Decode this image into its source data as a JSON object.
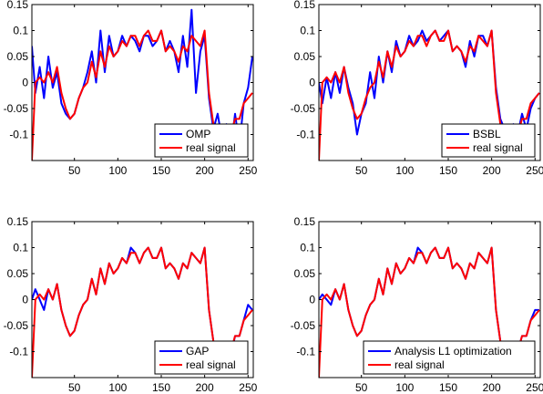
{
  "chart_data": [
    {
      "type": "line",
      "legend": [
        "OMP",
        "real signal"
      ],
      "legend_placement": "bottom-right",
      "xlim": [
        1,
        256
      ],
      "ylim": [
        -0.15,
        0.15
      ],
      "xticks": [
        50,
        100,
        150,
        200,
        250
      ],
      "yticks": [
        -0.1,
        -0.05,
        0,
        0.05,
        0.1,
        0.15
      ],
      "xtick_labels": [
        "50",
        "100",
        "150",
        "200",
        "250"
      ],
      "ytick_labels": [
        "-0.1",
        "-0.05",
        "0",
        "0.05",
        "0.1",
        "0.15"
      ],
      "grid": false,
      "series": [
        {
          "name": "OMP",
          "color": "#0000ff",
          "x": [
            1,
            5,
            10,
            15,
            20,
            25,
            30,
            35,
            40,
            45,
            50,
            55,
            60,
            65,
            70,
            75,
            80,
            85,
            90,
            95,
            100,
            105,
            110,
            115,
            120,
            125,
            130,
            135,
            140,
            145,
            150,
            155,
            160,
            165,
            170,
            175,
            180,
            185,
            190,
            195,
            200,
            205,
            210,
            215,
            220,
            225,
            230,
            235,
            240,
            245,
            250,
            255
          ],
          "y": [
            0.07,
            -0.02,
            0.03,
            -0.03,
            0.05,
            -0.01,
            0.02,
            -0.04,
            -0.06,
            -0.07,
            -0.06,
            -0.03,
            -0.01,
            0.02,
            0.06,
            0.0,
            0.1,
            0.02,
            0.09,
            0.05,
            0.06,
            0.09,
            0.07,
            0.09,
            0.08,
            0.06,
            0.09,
            0.09,
            0.07,
            0.08,
            0.1,
            0.06,
            0.08,
            0.06,
            0.02,
            0.09,
            0.03,
            0.14,
            -0.02,
            0.06,
            0.09,
            -0.03,
            -0.09,
            -0.06,
            -0.11,
            -0.08,
            -0.13,
            -0.06,
            -0.12,
            -0.04,
            -0.01,
            0.05
          ]
        },
        {
          "name": "real signal",
          "color": "#ff0000",
          "x": [
            1,
            5,
            10,
            15,
            20,
            25,
            30,
            35,
            40,
            45,
            50,
            55,
            60,
            65,
            70,
            75,
            80,
            85,
            90,
            95,
            100,
            105,
            110,
            115,
            120,
            125,
            130,
            135,
            140,
            145,
            150,
            155,
            160,
            165,
            170,
            175,
            180,
            185,
            190,
            195,
            200,
            205,
            210,
            215,
            220,
            225,
            230,
            235,
            240,
            245,
            250,
            255
          ],
          "y": [
            -0.15,
            0.0,
            0.01,
            0.0,
            0.02,
            0.0,
            0.03,
            -0.02,
            -0.05,
            -0.07,
            -0.06,
            -0.03,
            -0.01,
            0.0,
            0.04,
            0.01,
            0.06,
            0.03,
            0.07,
            0.05,
            0.06,
            0.08,
            0.07,
            0.09,
            0.09,
            0.07,
            0.09,
            0.1,
            0.08,
            0.08,
            0.1,
            0.06,
            0.07,
            0.06,
            0.04,
            0.07,
            0.06,
            0.09,
            0.08,
            0.07,
            0.1,
            -0.02,
            -0.08,
            -0.1,
            -0.12,
            -0.09,
            -0.1,
            -0.07,
            -0.07,
            -0.04,
            -0.03,
            -0.02
          ]
        }
      ]
    },
    {
      "type": "line",
      "legend": [
        "BSBL",
        "real signal"
      ],
      "legend_placement": "bottom-right",
      "xlim": [
        1,
        256
      ],
      "ylim": [
        -0.15,
        0.15
      ],
      "xticks": [
        50,
        100,
        150,
        200,
        250
      ],
      "yticks": [
        -0.1,
        -0.05,
        0,
        0.05,
        0.1,
        0.15
      ],
      "xtick_labels": [
        "50",
        "100",
        "150",
        "200",
        "250"
      ],
      "ytick_labels": [
        "-0.1",
        "-0.05",
        "0",
        "0.05",
        "0.1",
        "0.15"
      ],
      "grid": false,
      "series": [
        {
          "name": "BSBL",
          "color": "#0000ff",
          "x": [
            1,
            5,
            10,
            15,
            20,
            25,
            30,
            35,
            40,
            45,
            50,
            55,
            60,
            65,
            70,
            75,
            80,
            85,
            90,
            95,
            100,
            105,
            110,
            115,
            120,
            125,
            130,
            135,
            140,
            145,
            150,
            155,
            160,
            165,
            170,
            175,
            180,
            185,
            190,
            195,
            200,
            205,
            210,
            215,
            220,
            225,
            230,
            235,
            240,
            245,
            250,
            255
          ],
          "y": [
            0.0,
            -0.04,
            0.01,
            -0.03,
            0.02,
            -0.02,
            0.03,
            -0.01,
            -0.04,
            -0.1,
            -0.06,
            -0.04,
            0.02,
            -0.03,
            0.05,
            0.0,
            0.06,
            0.02,
            0.08,
            0.05,
            0.06,
            0.09,
            0.07,
            0.08,
            0.1,
            0.08,
            0.09,
            0.1,
            0.08,
            0.09,
            0.1,
            0.06,
            0.07,
            0.06,
            0.03,
            0.08,
            0.05,
            0.09,
            0.09,
            0.07,
            0.1,
            -0.01,
            -0.07,
            -0.09,
            -0.12,
            -0.08,
            -0.1,
            -0.06,
            -0.09,
            -0.05,
            -0.03,
            -0.02
          ]
        },
        {
          "name": "real signal",
          "color": "#ff0000",
          "x": [
            1,
            5,
            10,
            15,
            20,
            25,
            30,
            35,
            40,
            45,
            50,
            55,
            60,
            65,
            70,
            75,
            80,
            85,
            90,
            95,
            100,
            105,
            110,
            115,
            120,
            125,
            130,
            135,
            140,
            145,
            150,
            155,
            160,
            165,
            170,
            175,
            180,
            185,
            190,
            195,
            200,
            205,
            210,
            215,
            220,
            225,
            230,
            235,
            240,
            245,
            250,
            255
          ],
          "y": [
            -0.15,
            0.0,
            0.01,
            0.0,
            0.02,
            0.0,
            0.03,
            -0.02,
            -0.05,
            -0.07,
            -0.06,
            -0.03,
            -0.01,
            0.0,
            0.04,
            0.01,
            0.06,
            0.03,
            0.07,
            0.05,
            0.06,
            0.08,
            0.07,
            0.09,
            0.09,
            0.07,
            0.09,
            0.1,
            0.08,
            0.08,
            0.1,
            0.06,
            0.07,
            0.06,
            0.04,
            0.07,
            0.06,
            0.09,
            0.08,
            0.07,
            0.1,
            -0.02,
            -0.08,
            -0.1,
            -0.12,
            -0.09,
            -0.1,
            -0.07,
            -0.07,
            -0.04,
            -0.03,
            -0.02
          ]
        }
      ]
    },
    {
      "type": "line",
      "legend": [
        "GAP",
        "real signal"
      ],
      "legend_placement": "bottom-right",
      "xlim": [
        1,
        256
      ],
      "ylim": [
        -0.15,
        0.15
      ],
      "xticks": [
        50,
        100,
        150,
        200,
        250
      ],
      "yticks": [
        -0.1,
        -0.05,
        0,
        0.05,
        0.1,
        0.15
      ],
      "xtick_labels": [
        "50",
        "100",
        "150",
        "200",
        "250"
      ],
      "ytick_labels": [
        "-0.1",
        "-0.05",
        "0",
        "0.05",
        "0.1",
        "0.15"
      ],
      "grid": false,
      "series": [
        {
          "name": "GAP",
          "color": "#0000ff",
          "x": [
            1,
            5,
            10,
            15,
            20,
            25,
            30,
            35,
            40,
            45,
            50,
            55,
            60,
            65,
            70,
            75,
            80,
            85,
            90,
            95,
            100,
            105,
            110,
            115,
            120,
            125,
            130,
            135,
            140,
            145,
            150,
            155,
            160,
            165,
            170,
            175,
            180,
            185,
            190,
            195,
            200,
            205,
            210,
            215,
            220,
            225,
            230,
            235,
            240,
            245,
            250,
            255
          ],
          "y": [
            0.0,
            0.02,
            0.0,
            -0.02,
            0.02,
            0.0,
            0.03,
            -0.02,
            -0.05,
            -0.07,
            -0.06,
            -0.03,
            -0.01,
            0.0,
            0.04,
            0.01,
            0.06,
            0.03,
            0.07,
            0.05,
            0.06,
            0.08,
            0.07,
            0.1,
            0.09,
            0.07,
            0.09,
            0.1,
            0.08,
            0.08,
            0.1,
            0.06,
            0.07,
            0.06,
            0.04,
            0.07,
            0.06,
            0.09,
            0.08,
            0.07,
            0.1,
            -0.02,
            -0.08,
            -0.1,
            -0.12,
            -0.09,
            -0.11,
            -0.07,
            -0.07,
            -0.04,
            -0.01,
            -0.02
          ]
        },
        {
          "name": "real signal",
          "color": "#ff0000",
          "x": [
            1,
            5,
            10,
            15,
            20,
            25,
            30,
            35,
            40,
            45,
            50,
            55,
            60,
            65,
            70,
            75,
            80,
            85,
            90,
            95,
            100,
            105,
            110,
            115,
            120,
            125,
            130,
            135,
            140,
            145,
            150,
            155,
            160,
            165,
            170,
            175,
            180,
            185,
            190,
            195,
            200,
            205,
            210,
            215,
            220,
            225,
            230,
            235,
            240,
            245,
            250,
            255
          ],
          "y": [
            -0.15,
            0.0,
            0.01,
            0.0,
            0.02,
            0.0,
            0.03,
            -0.02,
            -0.05,
            -0.07,
            -0.06,
            -0.03,
            -0.01,
            0.0,
            0.04,
            0.01,
            0.06,
            0.03,
            0.07,
            0.05,
            0.06,
            0.08,
            0.07,
            0.09,
            0.09,
            0.07,
            0.09,
            0.1,
            0.08,
            0.08,
            0.1,
            0.06,
            0.07,
            0.06,
            0.04,
            0.07,
            0.06,
            0.09,
            0.08,
            0.07,
            0.1,
            -0.02,
            -0.08,
            -0.1,
            -0.12,
            -0.09,
            -0.1,
            -0.07,
            -0.07,
            -0.04,
            -0.03,
            -0.02
          ]
        }
      ]
    },
    {
      "type": "line",
      "legend": [
        "Analysis L1 optimization",
        "real signal"
      ],
      "legend_placement": "bottom-right",
      "xlim": [
        1,
        256
      ],
      "ylim": [
        -0.15,
        0.15
      ],
      "xticks": [
        50,
        100,
        150,
        200,
        250
      ],
      "yticks": [
        -0.1,
        -0.05,
        0,
        0.05,
        0.1,
        0.15
      ],
      "xtick_labels": [
        "50",
        "100",
        "150",
        "200",
        "250"
      ],
      "ytick_labels": [
        "-0.1",
        "-0.05",
        "0",
        "0.05",
        "0.1",
        "0.15"
      ],
      "grid": false,
      "series": [
        {
          "name": "Analysis L1 optimization",
          "color": "#0000ff",
          "x": [
            1,
            5,
            10,
            15,
            20,
            25,
            30,
            35,
            40,
            45,
            50,
            55,
            60,
            65,
            70,
            75,
            80,
            85,
            90,
            95,
            100,
            105,
            110,
            115,
            120,
            125,
            130,
            135,
            140,
            145,
            150,
            155,
            160,
            165,
            170,
            175,
            180,
            185,
            190,
            195,
            200,
            205,
            210,
            215,
            220,
            225,
            230,
            235,
            240,
            245,
            250,
            255
          ],
          "y": [
            0.0,
            0.01,
            0.0,
            -0.01,
            0.02,
            0.0,
            0.03,
            -0.02,
            -0.05,
            -0.07,
            -0.06,
            -0.03,
            -0.01,
            0.0,
            0.04,
            0.01,
            0.06,
            0.03,
            0.07,
            0.05,
            0.06,
            0.08,
            0.07,
            0.1,
            0.09,
            0.07,
            0.09,
            0.1,
            0.08,
            0.08,
            0.1,
            0.06,
            0.07,
            0.06,
            0.04,
            0.07,
            0.06,
            0.09,
            0.08,
            0.07,
            0.1,
            -0.02,
            -0.08,
            -0.1,
            -0.12,
            -0.09,
            -0.1,
            -0.07,
            -0.07,
            -0.04,
            -0.02,
            -0.02
          ]
        },
        {
          "name": "real signal",
          "color": "#ff0000",
          "x": [
            1,
            5,
            10,
            15,
            20,
            25,
            30,
            35,
            40,
            45,
            50,
            55,
            60,
            65,
            70,
            75,
            80,
            85,
            90,
            95,
            100,
            105,
            110,
            115,
            120,
            125,
            130,
            135,
            140,
            145,
            150,
            155,
            160,
            165,
            170,
            175,
            180,
            185,
            190,
            195,
            200,
            205,
            210,
            215,
            220,
            225,
            230,
            235,
            240,
            245,
            250,
            255
          ],
          "y": [
            -0.15,
            0.0,
            0.01,
            0.0,
            0.02,
            0.0,
            0.03,
            -0.02,
            -0.05,
            -0.07,
            -0.06,
            -0.03,
            -0.01,
            0.0,
            0.04,
            0.01,
            0.06,
            0.03,
            0.07,
            0.05,
            0.06,
            0.08,
            0.07,
            0.09,
            0.09,
            0.07,
            0.09,
            0.1,
            0.08,
            0.08,
            0.1,
            0.06,
            0.07,
            0.06,
            0.04,
            0.07,
            0.06,
            0.09,
            0.08,
            0.07,
            0.1,
            -0.02,
            -0.08,
            -0.1,
            -0.12,
            -0.09,
            -0.1,
            -0.07,
            -0.07,
            -0.04,
            -0.03,
            -0.02
          ]
        }
      ]
    }
  ]
}
